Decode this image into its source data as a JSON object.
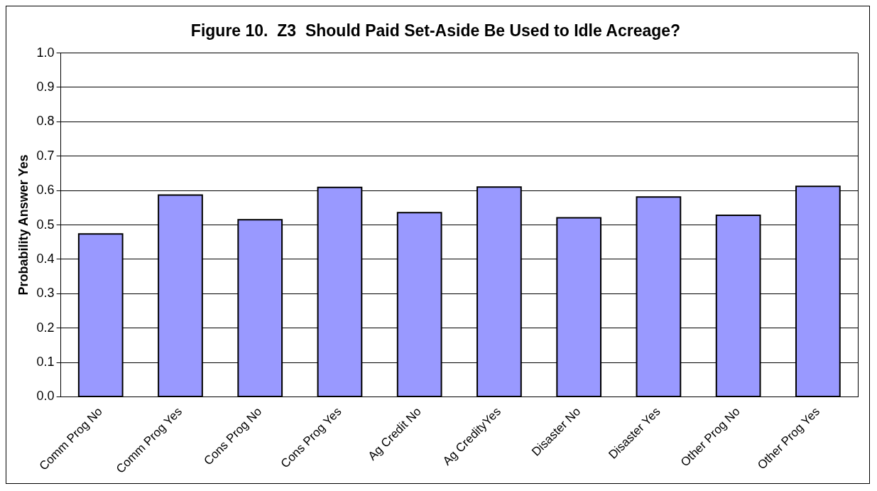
{
  "chart_data": {
    "type": "bar",
    "title": "Figure 10.  Z3  Should Paid Set-Aside Be Used to Idle Acreage?",
    "ylabel": "Probability Answer Yes",
    "categories": [
      "Comm Prog No",
      "Comm Prog Yes",
      "Cons Prog No",
      "Cons Prog Yes",
      "Ag Credit No",
      "Ag CredityYes",
      "Disaster No",
      "Disaster Yes",
      "Other Prog No",
      "Other Prog Yes"
    ],
    "values": [
      0.474,
      0.587,
      0.515,
      0.609,
      0.536,
      0.61,
      0.521,
      0.581,
      0.528,
      0.612
    ],
    "color": "#9999ff",
    "ylim": [
      0,
      1
    ],
    "yticks": [
      {
        "value": 0,
        "label": "0.0"
      },
      {
        "value": 0.1,
        "label": "0.1"
      },
      {
        "value": 0.2,
        "label": "0.2"
      },
      {
        "value": 0.3,
        "label": "0.3"
      },
      {
        "value": 0.4,
        "label": "0.4"
      },
      {
        "value": 0.5,
        "label": "0.5"
      },
      {
        "value": 0.6,
        "label": "0.6"
      },
      {
        "value": 0.7,
        "label": "0.7"
      },
      {
        "value": 0.8,
        "label": "0.8"
      },
      {
        "value": 0.9,
        "label": "0.9"
      },
      {
        "value": 1,
        "label": "1.0"
      }
    ],
    "grid": "y"
  }
}
